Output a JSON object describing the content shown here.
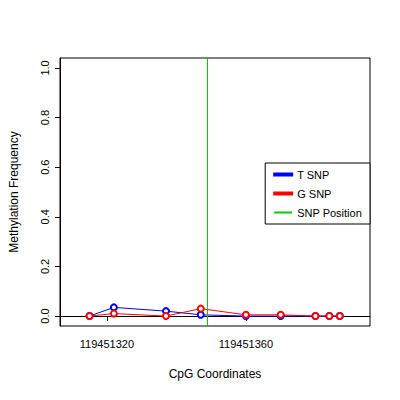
{
  "chart_data": {
    "type": "line",
    "x_label": "CpG Coordinates",
    "y_label": "Methylation Frequency",
    "x": [
      119451315,
      119451322,
      119451337,
      119451347,
      119451360,
      119451370,
      119451380,
      119451384,
      119451387
    ],
    "series": [
      {
        "name": "T SNP",
        "color": "#0000ff",
        "marker": "circle",
        "values": [
          0.0,
          0.035,
          0.02,
          0.005,
          0.0,
          0.0,
          0.0,
          0.0,
          0.0
        ]
      },
      {
        "name": "G SNP",
        "color": "#ff0000",
        "marker": "circle",
        "values": [
          0.0,
          0.01,
          0.0,
          0.03,
          0.005,
          0.005,
          0.0,
          0.0,
          0.0
        ]
      }
    ],
    "vline": {
      "name": "SNP Position",
      "x": 119451349,
      "color": "#00cc00"
    },
    "xlim": [
      119451306.5,
      119451395.7
    ],
    "xticks": [
      119451320,
      119451360
    ],
    "ylim": [
      -0.04,
      1.04
    ],
    "yticks": [
      {
        "value": 0,
        "label": "0.0"
      },
      {
        "value": 0.2,
        "label": "0.2"
      },
      {
        "value": 0.4,
        "label": "0.4"
      },
      {
        "value": 0.6,
        "label": "0.6"
      },
      {
        "value": 0.8,
        "label": "0.8"
      },
      {
        "value": 1,
        "label": "1.0"
      }
    ],
    "legend": "right",
    "grid": false
  }
}
